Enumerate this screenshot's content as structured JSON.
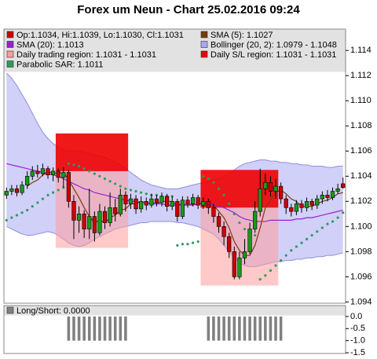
{
  "chart_data": [
    {
      "type": "candlestick",
      "title": "Forex um Neun - Chart 25.02.2016 09:24",
      "name": "Op:1.1034, Hi:1.1039, Lo:1.1030, Cl:1.1031",
      "up_color": "#1a9a1a",
      "down_color": "#cc0000",
      "open": [
        1.1025,
        1.1028,
        1.103,
        1.1027,
        1.1033,
        1.104,
        1.1044,
        1.1042,
        1.1046,
        1.1041,
        1.1044,
        1.1039,
        1.1043,
        1.102,
        1.1005,
        1.101,
        1.0998,
        1.1008,
        1.0995,
        1.1012,
        1.1003,
        1.1015,
        1.101,
        1.1025,
        1.1018,
        1.1022,
        1.1014,
        1.102,
        1.1017,
        1.1022,
        1.1019,
        1.1024,
        1.1016,
        1.102,
        1.1008,
        1.1021,
        1.1018,
        1.1023,
        1.1017,
        1.102,
        1.1015,
        1.1008,
        1.1,
        1.0992,
        1.098,
        1.096,
        1.0975,
        1.098,
        1.0998,
        1.1012,
        1.103,
        1.1035,
        1.1028,
        1.1032,
        1.1022,
        1.1015,
        1.1012,
        1.1018,
        1.1015,
        1.102,
        1.1017,
        1.1022,
        1.1025,
        1.1023,
        1.1028,
        1.1034
      ],
      "high": [
        1.1031,
        1.1033,
        1.1033,
        1.1036,
        1.1044,
        1.1048,
        1.1049,
        1.105,
        1.1048,
        1.1047,
        1.1046,
        1.1047,
        1.1045,
        1.1025,
        1.1016,
        1.1013,
        1.103,
        1.1012,
        1.1018,
        1.1016,
        1.1027,
        1.1022,
        1.103,
        1.1028,
        1.1026,
        1.1025,
        1.1024,
        1.1023,
        1.1026,
        1.1025,
        1.1027,
        1.1026,
        1.1024,
        1.1022,
        1.1024,
        1.1024,
        1.1026,
        1.1025,
        1.1023,
        1.1022,
        1.1018,
        1.1011,
        1.1004,
        1.0995,
        1.0984,
        1.098,
        1.099,
        1.1003,
        1.102,
        1.1046,
        1.1042,
        1.104,
        1.1038,
        1.1035,
        1.1025,
        1.1018,
        1.1021,
        1.1021,
        1.1023,
        1.1022,
        1.1025,
        1.1028,
        1.1029,
        1.1031,
        1.1034,
        1.1039
      ],
      "low": [
        1.1022,
        1.1025,
        1.1024,
        1.1025,
        1.103,
        1.1037,
        1.1039,
        1.104,
        1.1038,
        1.1036,
        1.1035,
        1.1031,
        1.1015,
        1.099,
        1.0995,
        1.0991,
        1.099,
        1.0988,
        1.0993,
        1.0998,
        1.1,
        1.1004,
        1.1008,
        1.1012,
        1.1014,
        1.101,
        1.1011,
        1.1013,
        1.1015,
        1.1016,
        1.1016,
        1.1012,
        1.1013,
        1.1004,
        1.1006,
        1.1015,
        1.1016,
        1.1014,
        1.1014,
        1.101,
        1.1003,
        1.0995,
        1.0985,
        1.0975,
        1.0958,
        1.0958,
        1.097,
        1.0978,
        1.0995,
        1.1008,
        1.1025,
        1.1024,
        1.1022,
        1.1018,
        1.101,
        1.1008,
        1.1009,
        1.1011,
        1.1012,
        1.1013,
        1.1014,
        1.1018,
        1.102,
        1.1021,
        1.1026,
        1.103
      ],
      "close": [
        1.1028,
        1.103,
        1.1027,
        1.1033,
        1.104,
        1.1044,
        1.1042,
        1.1046,
        1.1041,
        1.1044,
        1.1039,
        1.1043,
        1.102,
        1.1005,
        1.101,
        1.0998,
        1.1008,
        1.0995,
        1.1012,
        1.1003,
        1.1015,
        1.101,
        1.1025,
        1.1018,
        1.1022,
        1.1014,
        1.102,
        1.1017,
        1.1022,
        1.1019,
        1.1024,
        1.1016,
        1.102,
        1.1008,
        1.1021,
        1.1018,
        1.1023,
        1.1017,
        1.102,
        1.1015,
        1.1008,
        1.1,
        1.0992,
        1.098,
        1.096,
        1.0975,
        1.098,
        1.0998,
        1.1012,
        1.103,
        1.1035,
        1.1028,
        1.1032,
        1.1022,
        1.1015,
        1.1012,
        1.1018,
        1.1015,
        1.102,
        1.1017,
        1.1022,
        1.1025,
        1.1023,
        1.1028,
        1.103,
        1.1031
      ],
      "series": [
        {
          "name": "SMA (5): 1.1027",
          "color": "#7a3b10",
          "marker": "line",
          "values": [
            null,
            null,
            null,
            null,
            1.1032,
            1.1035,
            1.1037,
            1.1041,
            1.1043,
            1.1043,
            1.1042,
            1.1043,
            1.1037,
            1.103,
            1.1023,
            1.1015,
            1.1008,
            1.1003,
            1.1005,
            1.1003,
            1.1007,
            1.1009,
            1.1013,
            1.1014,
            1.1018,
            1.1018,
            1.102,
            1.1018,
            1.1019,
            1.1018,
            1.102,
            1.102,
            1.102,
            1.1017,
            1.1018,
            1.1017,
            1.1018,
            1.1017,
            1.102,
            1.1019,
            1.1017,
            1.1012,
            1.1007,
            1.0999,
            1.0988,
            1.0981,
            1.0977,
            1.0977,
            1.0985,
            1.0999,
            1.1015,
            1.1021,
            1.1027,
            1.1029,
            1.1026,
            1.1022,
            1.102,
            1.1016,
            1.1016,
            1.1016,
            1.1018,
            1.102,
            1.1021,
            1.1023,
            1.1026,
            1.1027
          ]
        },
        {
          "name": "SMA (20): 1.1013",
          "color": "#9a1fd6",
          "marker": "line",
          "values": [
            1.105,
            1.1049,
            1.1048,
            1.1047,
            1.1046,
            1.1045,
            1.1044,
            1.1043,
            1.1042,
            1.1041,
            1.104,
            1.1038,
            1.1036,
            1.1034,
            1.1032,
            1.103,
            1.1029,
            1.1027,
            1.1026,
            1.1025,
            1.1024,
            1.1023,
            1.1022,
            1.1021,
            1.102,
            1.102,
            1.1019,
            1.1019,
            1.1018,
            1.1018,
            1.1018,
            1.1017,
            1.1017,
            1.1017,
            1.1017,
            1.1017,
            1.1017,
            1.1018,
            1.1018,
            1.1018,
            1.1017,
            1.1016,
            1.1015,
            1.1013,
            1.1011,
            1.1008,
            1.1006,
            1.1005,
            1.1004,
            1.1004,
            1.1004,
            1.1005,
            1.1005,
            1.1005,
            1.1005,
            1.1005,
            1.1006,
            1.1006,
            1.1007,
            1.1007,
            1.1008,
            1.1009,
            1.101,
            1.1011,
            1.1012,
            1.1013
          ]
        },
        {
          "name": "Parabolic SAR: 1.1011",
          "color": "#2f9a5e",
          "marker": "dot",
          "values": [
            1.1005,
            1.1007,
            1.1009,
            1.1011,
            1.1013,
            1.1016,
            1.1019,
            1.1022,
            1.1025,
            1.1027,
            1.1029,
            1.1031,
            1.105,
            1.1049,
            1.1048,
            1.1046,
            1.1044,
            1.1042,
            1.104,
            1.1038,
            1.1036,
            1.1034,
            1.1032,
            1.103,
            1.1029,
            1.1028,
            1.1027,
            1.1026,
            1.1025,
            1.1025,
            1.1024,
            1.1024,
            1.1024,
            1.0985,
            1.0986,
            1.0986,
            1.0987,
            1.0988,
            1.104,
            1.1038,
            1.1035,
            1.103,
            1.1025,
            1.1018,
            1.101,
            1.1003,
            1.0998,
            1.0995,
            1.0993,
            1.0958,
            1.0961,
            1.0965,
            1.0969,
            1.0973,
            1.0977,
            1.0981,
            1.0984,
            1.0987,
            1.099,
            1.0993,
            1.0996,
            1.0999,
            1.1002,
            1.1004,
            1.1007,
            1.1011
          ]
        }
      ],
      "bollinger": {
        "name": "Bollinger (20, 2): 1.0979 - 1.1048",
        "color": "#a9a9f2",
        "upper": [
          1.1122,
          1.1118,
          1.1112,
          1.1105,
          1.1098,
          1.109,
          1.1082,
          1.1075,
          1.107,
          1.1066,
          1.1063,
          1.1061,
          1.106,
          1.106,
          1.106,
          1.1059,
          1.1058,
          1.1057,
          1.1056,
          1.1055,
          1.1053,
          1.1051,
          1.1049,
          1.1046,
          1.1043,
          1.104,
          1.1037,
          1.1035,
          1.1033,
          1.1032,
          1.1031,
          1.103,
          1.103,
          1.103,
          1.1031,
          1.1032,
          1.1033,
          1.1034,
          1.1035,
          1.1036,
          1.1037,
          1.1038,
          1.104,
          1.1042,
          1.1045,
          1.1048,
          1.105,
          1.1051,
          1.1052,
          1.1053,
          1.1053,
          1.1052,
          1.1052,
          1.1051,
          1.1051,
          1.105,
          1.105,
          1.1049,
          1.1049,
          1.1048,
          1.1048,
          1.1048,
          1.1047,
          1.1047,
          1.1048,
          1.1048
        ],
        "lower": [
          1.1,
          1.0998,
          1.0996,
          1.0994,
          1.0993,
          1.0993,
          1.0994,
          1.0995,
          1.0996,
          1.0995,
          1.0993,
          1.099,
          1.0987,
          1.0985,
          1.0984,
          1.0985,
          1.0987,
          1.099,
          1.0992,
          1.0994,
          1.0996,
          1.0998,
          1.0999,
          1.1,
          1.1001,
          1.1002,
          1.1003,
          1.1003,
          1.1004,
          1.1004,
          1.1004,
          1.1004,
          1.1004,
          1.1003,
          1.1003,
          1.1002,
          1.1001,
          1.1,
          1.0998,
          1.0996,
          1.0994,
          1.099,
          1.0985,
          1.098,
          1.0975,
          1.0971,
          1.0969,
          1.0968,
          1.0968,
          1.0969,
          1.097,
          1.0971,
          1.0972,
          1.0972,
          1.0973,
          1.0973,
          1.0974,
          1.0974,
          1.0975,
          1.0975,
          1.0976,
          1.0976,
          1.0977,
          1.0977,
          1.0978,
          1.0979
        ]
      },
      "trading_region": {
        "name": "Daily trading region: 1.1031 - 1.1031",
        "color": "#ff9c9c",
        "areas": [
          {
            "start": 10,
            "end": 23,
            "low": 1.0983,
            "high": 1.1044
          },
          {
            "start": 38,
            "end": 52,
            "low": 1.0953,
            "high": 1.1015
          }
        ]
      },
      "sl_region": {
        "name": "Daily S/L region: 1.1031 - 1.1031",
        "color": "#ee0000",
        "areas": [
          {
            "start": 10,
            "end": 23,
            "low": 1.1044,
            "high": 1.1074
          },
          {
            "start": 38,
            "end": 52,
            "low": 1.1015,
            "high": 1.1045
          }
        ]
      },
      "ylim": [
        1.0939,
        1.1157
      ],
      "yticks": [
        1.094,
        1.096,
        1.098,
        {
          "value": 1.1,
          "label": "1.100"
        },
        1.102,
        1.104,
        1.106,
        1.108,
        {
          "value": 1.11,
          "label": "1.110"
        },
        1.112,
        1.114
      ]
    },
    {
      "type": "bar",
      "series": [
        {
          "name": "Long/Short: 0.0000",
          "color": "#808080",
          "values": [
            0,
            0,
            0,
            0,
            0,
            0,
            0,
            0,
            0,
            0,
            0,
            0,
            -1,
            -1,
            -1,
            -1,
            -1,
            -1,
            -1,
            -1,
            -1,
            -1,
            -1,
            -1,
            0,
            0,
            0,
            0,
            0,
            0,
            0,
            0,
            0,
            0,
            0,
            0,
            0,
            0,
            0,
            -1,
            -1,
            -1,
            -1,
            -1,
            -1,
            -1,
            -1,
            -1,
            -1,
            -1,
            -1,
            -1,
            -1,
            -1,
            0,
            0,
            0,
            0,
            0,
            0,
            0,
            0,
            0,
            0,
            0,
            0
          ]
        }
      ],
      "ylim": [
        -1.53,
        0.45
      ],
      "yticks": [
        {
          "value": 0,
          "label": "0.0"
        },
        {
          "value": -0.5,
          "label": "-0.5"
        },
        {
          "value": -1,
          "label": "-1.0"
        },
        {
          "value": -1.5,
          "label": "-1.5"
        }
      ]
    }
  ]
}
